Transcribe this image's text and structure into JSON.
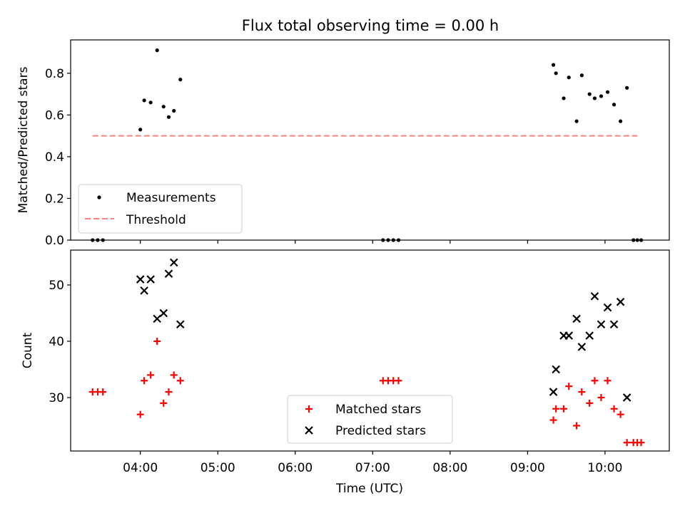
{
  "figure": {
    "title": "Flux total observing time = 0.00 h",
    "xlabel": "Time (UTC)",
    "x_ticks": [
      "04:00",
      "05:00",
      "06:00",
      "07:00",
      "08:00",
      "09:00",
      "10:00"
    ],
    "x_tick_hours": [
      4,
      5,
      6,
      7,
      8,
      9,
      10
    ],
    "xlim_hours": [
      3.1,
      10.83
    ]
  },
  "chart_data": [
    {
      "type": "scatter",
      "title": "Flux total observing time = 0.00 h",
      "xlabel": "",
      "ylabel": "Matched/Predicted stars",
      "ylim": [
        0,
        0.96
      ],
      "y_ticks": [
        0.0,
        0.2,
        0.4,
        0.6,
        0.8
      ],
      "y_tick_labels": [
        "0.0",
        "0.2",
        "0.4",
        "0.6",
        "0.8"
      ],
      "legend_placement": "lower-left",
      "series": [
        {
          "name": "Measurements",
          "kind": "scatter",
          "color": "#000000",
          "x": [
            "03:23",
            "03:27",
            "03:31",
            "04:00",
            "04:03",
            "04:08",
            "04:13",
            "04:18",
            "04:22",
            "04:26",
            "04:31",
            "07:08",
            "07:12",
            "07:16",
            "07:20",
            "09:20",
            "09:22",
            "09:28",
            "09:32",
            "09:38",
            "09:42",
            "09:48",
            "09:52",
            "09:57",
            "10:02",
            "10:07",
            "10:12",
            "10:17",
            "10:22",
            "10:25",
            "10:28"
          ],
          "y": [
            0.0,
            0.0,
            0.0,
            0.53,
            0.67,
            0.66,
            0.91,
            0.64,
            0.59,
            0.62,
            0.77,
            0.0,
            0.0,
            0.0,
            0.0,
            0.84,
            0.8,
            0.68,
            0.78,
            0.57,
            0.79,
            0.7,
            0.68,
            0.69,
            0.71,
            0.65,
            0.57,
            0.73,
            0.0,
            0.0,
            0.0
          ]
        },
        {
          "name": "Threshold",
          "kind": "line",
          "style": "dashed",
          "color": "#ff7f7f",
          "x": [
            "03:23",
            "10:25"
          ],
          "y": [
            0.5,
            0.5
          ]
        }
      ]
    },
    {
      "type": "scatter",
      "xlabel": "Time (UTC)",
      "ylabel": "Count",
      "ylim": [
        20.5,
        56.2
      ],
      "y_ticks": [
        30,
        40,
        50
      ],
      "y_tick_labels": [
        "30",
        "40",
        "50"
      ],
      "legend_placement": "lower-center",
      "series": [
        {
          "name": "Matched stars",
          "marker": "plus",
          "color": "#ff0000",
          "x": [
            "03:23",
            "03:27",
            "03:31",
            "04:00",
            "04:03",
            "04:08",
            "04:13",
            "04:18",
            "04:22",
            "04:26",
            "04:31",
            "07:08",
            "07:12",
            "07:16",
            "07:20",
            "09:20",
            "09:22",
            "09:28",
            "09:32",
            "09:38",
            "09:42",
            "09:48",
            "09:52",
            "09:57",
            "10:02",
            "10:07",
            "10:12",
            "10:17",
            "10:22",
            "10:25",
            "10:28"
          ],
          "y": [
            31,
            31,
            31,
            27,
            33,
            34,
            40,
            29,
            31,
            34,
            33,
            33,
            33,
            33,
            33,
            26,
            28,
            28,
            32,
            25,
            31,
            29,
            33,
            30,
            33,
            28,
            27,
            22,
            22,
            22,
            22
          ]
        },
        {
          "name": "Predicted stars",
          "marker": "x",
          "color": "#000000",
          "x": [
            "04:00",
            "04:03",
            "04:08",
            "04:13",
            "04:18",
            "04:22",
            "04:26",
            "04:31",
            "09:20",
            "09:22",
            "09:28",
            "09:32",
            "09:38",
            "09:42",
            "09:48",
            "09:52",
            "09:57",
            "10:02",
            "10:07",
            "10:12",
            "10:17"
          ],
          "y": [
            51,
            49,
            51,
            44,
            45,
            52,
            54,
            43,
            31,
            35,
            41,
            41,
            44,
            39,
            41,
            48,
            43,
            46,
            43,
            47,
            30
          ]
        }
      ]
    }
  ]
}
